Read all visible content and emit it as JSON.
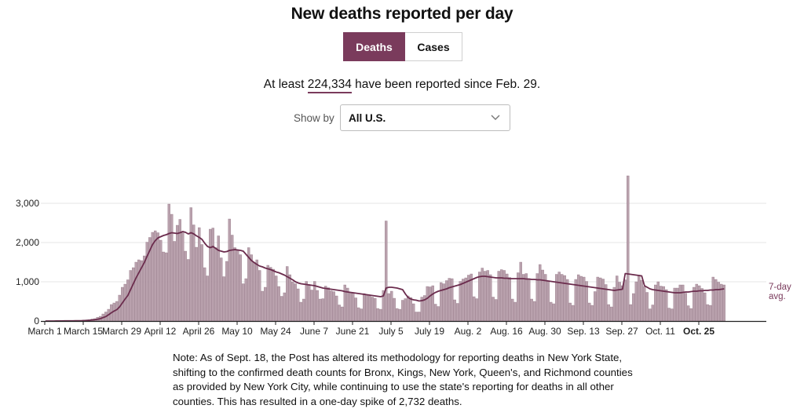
{
  "title": "New deaths reported per day",
  "toggle": {
    "active": "Deaths",
    "inactive": "Cases"
  },
  "summary": {
    "prefix": "At least",
    "count": "224,334",
    "suffix": "have been reported since Feb. 29."
  },
  "show_by": {
    "label": "Show by",
    "value": "All U.S."
  },
  "note": "Note: As of Sept. 18, the Post has altered its methodology for reporting deaths in New York State, shifting to the confirmed death counts for Bronx, Kings, New York, Queen's, and Richmond counties as provided by New York City, while continuing to use the state's reporting for deaths in all other counties. This has resulted in a one-day spike of 2,732 deaths.",
  "colors": {
    "bar": "#b9a1ad",
    "bar_stroke": "#8f6f80",
    "line": "#6b2c4d",
    "accent": "#7a3b5c",
    "axis": "#222222",
    "grid": "#e6e6e6"
  },
  "chart_data": {
    "type": "bar",
    "title": "New deaths reported per day",
    "xlabel": "",
    "ylabel": "",
    "ylim": [
      0,
      3500
    ],
    "yticks": [
      0,
      1000,
      2000,
      3000
    ],
    "ytick_labels": [
      "0",
      "1,000",
      "2,000",
      "3,000"
    ],
    "x_start_label": "March 1",
    "x_tick_days": [
      0,
      14,
      28,
      42,
      56,
      70,
      84,
      98,
      112,
      126,
      140,
      154,
      168,
      182,
      196,
      210,
      224,
      238
    ],
    "x_tick_labels": [
      "March 1",
      "March 15",
      "March 29",
      "April 12",
      "April 26",
      "May 10",
      "May 24",
      "June 7",
      "June 21",
      "July 5",
      "July 19",
      "Aug. 2",
      "Aug. 16",
      "Aug. 30",
      "Sep. 13",
      "Sep. 27",
      "Oct. 11",
      "Oct. 25"
    ],
    "avg_label": "7-day avg.",
    "series": [
      {
        "name": "Daily deaths",
        "values": [
          0,
          0,
          0,
          0,
          3,
          3,
          2,
          3,
          4,
          4,
          6,
          10,
          10,
          16,
          22,
          30,
          35,
          50,
          60,
          95,
          120,
          180,
          230,
          300,
          420,
          460,
          500,
          660,
          860,
          940,
          1050,
          1290,
          1360,
          1500,
          1560,
          1540,
          1660,
          2010,
          2130,
          2260,
          2300,
          2250,
          2060,
          1760,
          1740,
          2980,
          2720,
          2030,
          2440,
          2590,
          2250,
          1780,
          1570,
          2890,
          2450,
          1880,
          2380,
          1950,
          1360,
          1150,
          2340,
          2370,
          1870,
          2170,
          1610,
          1130,
          1520,
          2600,
          2190,
          1870,
          1800,
          1690,
          950,
          1080,
          1870,
          1690,
          1490,
          1560,
          1290,
          760,
          860,
          1420,
          1370,
          1320,
          1150,
          880,
          630,
          720,
          1390,
          1180,
          1000,
          950,
          820,
          480,
          560,
          1010,
          930,
          790,
          1010,
          780,
          560,
          570,
          890,
          850,
          770,
          750,
          640,
          410,
          360,
          920,
          840,
          730,
          710,
          590,
          340,
          310,
          700,
          670,
          640,
          610,
          580,
          320,
          300,
          780,
          2550,
          700,
          760,
          580,
          320,
          300,
          530,
          570,
          640,
          600,
          440,
          230,
          230,
          610,
          650,
          880,
          870,
          900,
          430,
          370,
          980,
          950,
          1030,
          1090,
          1080,
          540,
          450,
          1010,
          1070,
          1100,
          1170,
          1200,
          620,
          570,
          1250,
          1350,
          1270,
          1290,
          1180,
          610,
          550,
          1270,
          1310,
          1290,
          1200,
          1110,
          560,
          480,
          1230,
          1500,
          1190,
          1210,
          1070,
          560,
          500,
          1210,
          1440,
          1300,
          1190,
          1020,
          480,
          440,
          1190,
          1250,
          1190,
          1160,
          1060,
          460,
          400,
          1060,
          1180,
          1140,
          1120,
          1010,
          460,
          400,
          750,
          1120,
          1100,
          1070,
          930,
          420,
          360,
          860,
          1150,
          990,
          900,
          1050,
          3700,
          420,
          700,
          1000,
          1170,
          1040,
          880,
          730,
          310,
          410,
          920,
          1000,
          890,
          880,
          800,
          330,
          310,
          840,
          840,
          920,
          920,
          710,
          390,
          320,
          860,
          940,
          900,
          830,
          720,
          420,
          400,
          1120,
          1060,
          990,
          940,
          920
        ]
      },
      {
        "name": "7-day avg.",
        "values": [
          0,
          0,
          0,
          0,
          1,
          2,
          2,
          3,
          3,
          4,
          5,
          6,
          7,
          9,
          11,
          15,
          20,
          28,
          35,
          47,
          60,
          88,
          115,
          160,
          210,
          255,
          290,
          360,
          460,
          560,
          650,
          800,
          950,
          1100,
          1230,
          1360,
          1490,
          1650,
          1800,
          1950,
          2050,
          2120,
          2150,
          2180,
          2200,
          2230,
          2250,
          2240,
          2230,
          2250,
          2280,
          2260,
          2220,
          2250,
          2220,
          2170,
          2130,
          2080,
          1980,
          1900,
          1870,
          1900,
          1850,
          1800,
          1780,
          1760,
          1770,
          1800,
          1810,
          1820,
          1810,
          1800,
          1780,
          1700,
          1620,
          1540,
          1490,
          1440,
          1400,
          1380,
          1350,
          1330,
          1310,
          1280,
          1250,
          1230,
          1200,
          1170,
          1130,
          1090,
          1050,
          1000,
          970,
          950,
          940,
          930,
          920,
          910,
          900,
          880,
          860,
          840,
          830,
          820,
          810,
          800,
          790,
          780,
          770,
          750,
          740,
          730,
          720,
          710,
          700,
          690,
          680,
          670,
          660,
          650,
          640,
          630,
          620,
          640,
          840,
          860,
          860,
          850,
          840,
          820,
          800,
          690,
          600,
          560,
          540,
          530,
          510,
          520,
          540,
          580,
          640,
          690,
          730,
          760,
          780,
          800,
          820,
          850,
          870,
          890,
          910,
          930,
          960,
          990,
          1020,
          1050,
          1080,
          1110,
          1130,
          1140,
          1140,
          1130,
          1120,
          1110,
          1100,
          1100,
          1100,
          1090,
          1090,
          1080,
          1080,
          1080,
          1080,
          1080,
          1080,
          1070,
          1070,
          1060,
          1060,
          1050,
          1050,
          1040,
          1030,
          1020,
          1010,
          1000,
          990,
          980,
          970,
          960,
          950,
          940,
          930,
          920,
          910,
          900,
          890,
          880,
          870,
          860,
          850,
          840,
          830,
          820,
          810,
          800,
          790,
          780,
          790,
          800,
          810,
          1210,
          1200,
          1190,
          1180,
          1170,
          1160,
          1150,
          900,
          860,
          820,
          800,
          790,
          780,
          770,
          760,
          750,
          740,
          730,
          720,
          720,
          720,
          730,
          740,
          740,
          750,
          760,
          760,
          770,
          770,
          780,
          780,
          790,
          790,
          800,
          800,
          810,
          820
        ]
      }
    ]
  }
}
